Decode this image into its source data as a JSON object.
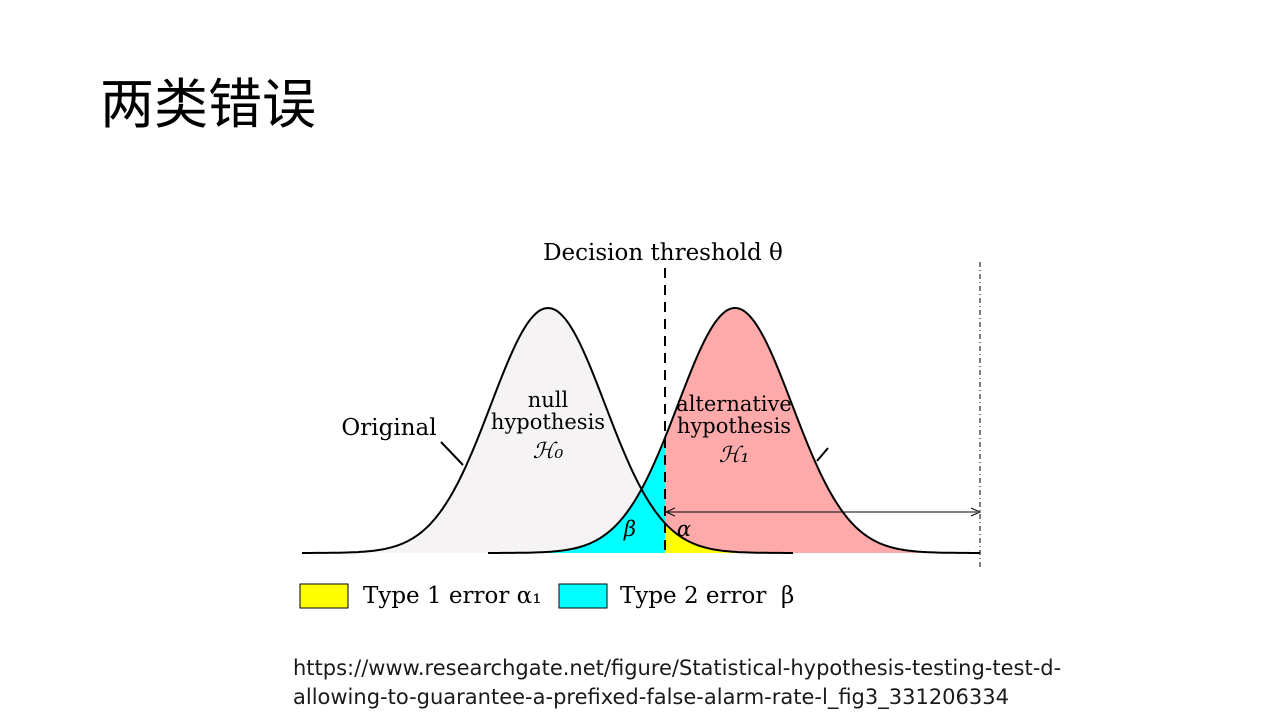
{
  "title": "两类错误",
  "figure": {
    "threshold_label": "Decision threshold θ",
    "original_label": "Original",
    "null_label_line1": "null",
    "null_label_line2": "hypothesis",
    "null_symbol": "ℋ₀",
    "alt_label_line1": "alternative",
    "alt_label_line2": "hypothesis",
    "alt_symbol": "ℋ₁",
    "beta_mark": "β",
    "alpha_mark": "α",
    "legend": [
      {
        "color": "#ffff00",
        "label": "Type 1 error α₁"
      },
      {
        "color": "#00ffff",
        "label": "Type 2 error  β"
      }
    ],
    "colors": {
      "null_fill": "#f5f3f4",
      "alt_fill": "#ffaaaa",
      "type1_fill": "#ffff00",
      "type2_fill": "#00ffff"
    }
  },
  "source": {
    "line1": "https://www.researchgate.net/figure/Statistical-hypothesis-testing-test-d-",
    "line2": "allowing-to-guarantee-a-prefixed-false-alarm-rate-l_fig3_331206334"
  }
}
